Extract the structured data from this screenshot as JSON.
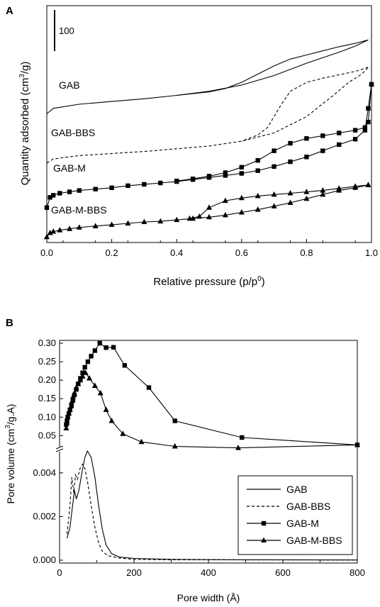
{
  "chart_data": [
    {
      "panel_label": "A",
      "type": "line",
      "xlabel_main": "Relative pressure (p/p",
      "xlabel_sup": "0",
      "xlabel_end": ")",
      "ylabel_main": "Quantity adsorbed (cm",
      "ylabel_sup": "3",
      "ylabel_end": "/g)",
      "scale_bar_label": "100",
      "xlim": [
        0,
        1
      ],
      "xticks": [
        "0.0",
        "0.2",
        "0.4",
        "0.6",
        "0.8",
        "1.0"
      ],
      "curve_labels": [
        "GAB",
        "GAB-BBS",
        "GAB-M",
        "GAB-M-BBS"
      ],
      "series": [
        {
          "name": "GAB",
          "style": "solid",
          "marker": "none",
          "ads": [
            [
              0.0,
              182
            ],
            [
              0.02,
              190
            ],
            [
              0.1,
              196
            ],
            [
              0.2,
              200
            ],
            [
              0.3,
              204
            ],
            [
              0.4,
              209
            ],
            [
              0.5,
              215
            ],
            [
              0.6,
              224
            ],
            [
              0.7,
              238
            ],
            [
              0.8,
              256
            ],
            [
              0.9,
              272
            ],
            [
              0.95,
              281
            ],
            [
              0.99,
              290
            ]
          ],
          "des": [
            [
              0.99,
              290
            ],
            [
              0.95,
              285
            ],
            [
              0.9,
              280
            ],
            [
              0.85,
              274
            ],
            [
              0.8,
              268
            ],
            [
              0.75,
              262
            ],
            [
              0.7,
              252
            ],
            [
              0.65,
              240
            ],
            [
              0.6,
              228
            ],
            [
              0.55,
              219
            ],
            [
              0.5,
              214
            ],
            [
              0.4,
              209
            ]
          ]
        },
        {
          "name": "GAB-BBS",
          "style": "dashed",
          "marker": "none",
          "ads": [
            [
              0.0,
              110
            ],
            [
              0.02,
              116
            ],
            [
              0.1,
              121
            ],
            [
              0.2,
              124
            ],
            [
              0.3,
              127
            ],
            [
              0.4,
              131
            ],
            [
              0.5,
              135
            ],
            [
              0.6,
              142
            ],
            [
              0.7,
              154
            ],
            [
              0.8,
              178
            ],
            [
              0.88,
              208
            ],
            [
              0.93,
              228
            ],
            [
              0.97,
              240
            ],
            [
              0.99,
              250
            ]
          ],
          "des": [
            [
              0.99,
              250
            ],
            [
              0.95,
              244
            ],
            [
              0.9,
              239
            ],
            [
              0.85,
              234
            ],
            [
              0.8,
              228
            ],
            [
              0.75,
              215
            ],
            [
              0.72,
              194
            ],
            [
              0.7,
              178
            ],
            [
              0.68,
              162
            ],
            [
              0.65,
              151
            ],
            [
              0.6,
              142
            ]
          ]
        },
        {
          "name": "GAB-M",
          "style": "solid",
          "marker": "square",
          "ads": [
            [
              0.0,
              45
            ],
            [
              0.01,
              60
            ],
            [
              0.02,
              63
            ],
            [
              0.04,
              66
            ],
            [
              0.07,
              68
            ],
            [
              0.1,
              70
            ],
            [
              0.15,
              72
            ],
            [
              0.2,
              74
            ],
            [
              0.25,
              77
            ],
            [
              0.3,
              79
            ],
            [
              0.35,
              81
            ],
            [
              0.4,
              83
            ],
            [
              0.45,
              86
            ],
            [
              0.5,
              89
            ],
            [
              0.55,
              92
            ],
            [
              0.6,
              95
            ],
            [
              0.65,
              99
            ],
            [
              0.7,
              105
            ],
            [
              0.75,
              112
            ],
            [
              0.8,
              119
            ],
            [
              0.85,
              128
            ],
            [
              0.9,
              137
            ],
            [
              0.95,
              145
            ],
            [
              0.98,
              158
            ],
            [
              0.99,
              190
            ],
            [
              1.0,
              225
            ]
          ],
          "des": [
            [
              1.0,
              225
            ],
            [
              0.99,
              170
            ],
            [
              0.98,
              162
            ],
            [
              0.95,
              158
            ],
            [
              0.9,
              154
            ],
            [
              0.85,
              150
            ],
            [
              0.8,
              146
            ],
            [
              0.75,
              139
            ],
            [
              0.7,
              128
            ],
            [
              0.65,
              114
            ],
            [
              0.6,
              104
            ],
            [
              0.55,
              96
            ],
            [
              0.5,
              91
            ],
            [
              0.45,
              87
            ],
            [
              0.4,
              84
            ]
          ]
        },
        {
          "name": "GAB-M-BBS",
          "style": "solid",
          "marker": "triangle",
          "ads": [
            [
              0.0,
              2
            ],
            [
              0.01,
              8
            ],
            [
              0.02,
              10
            ],
            [
              0.04,
              12
            ],
            [
              0.07,
              14
            ],
            [
              0.1,
              16
            ],
            [
              0.15,
              18
            ],
            [
              0.2,
              20
            ],
            [
              0.25,
              22
            ],
            [
              0.3,
              24
            ],
            [
              0.35,
              25
            ],
            [
              0.4,
              27
            ],
            [
              0.45,
              29
            ],
            [
              0.5,
              31
            ],
            [
              0.55,
              34
            ],
            [
              0.6,
              38
            ],
            [
              0.65,
              42
            ],
            [
              0.7,
              47
            ],
            [
              0.75,
              52
            ],
            [
              0.8,
              58
            ],
            [
              0.85,
              64
            ],
            [
              0.9,
              70
            ],
            [
              0.95,
              74
            ],
            [
              0.99,
              78
            ]
          ],
          "des": [
            [
              0.99,
              78
            ],
            [
              0.95,
              76
            ],
            [
              0.9,
              73
            ],
            [
              0.85,
              70
            ],
            [
              0.8,
              68
            ],
            [
              0.75,
              66
            ],
            [
              0.7,
              64
            ],
            [
              0.65,
              62
            ],
            [
              0.6,
              59
            ],
            [
              0.55,
              55
            ],
            [
              0.5,
              45
            ],
            [
              0.47,
              32
            ],
            [
              0.44,
              29
            ]
          ]
        }
      ]
    },
    {
      "panel_label": "B",
      "type": "line",
      "xlabel": "Pore width (Å)",
      "ylabel_main": "Pore volume (cm",
      "ylabel_sup": "3",
      "ylabel_end": "/g.A)",
      "xlim": [
        0,
        800
      ],
      "xticks": [
        "0",
        "200",
        "400",
        "600",
        "800"
      ],
      "ylim_upper": [
        0.02,
        0.3
      ],
      "yticks_upper": [
        "0.05",
        "0.10",
        "0.15",
        "0.20",
        "0.25",
        "0.30"
      ],
      "ylim_lower": [
        0,
        0.005
      ],
      "yticks_lower": [
        "0.000",
        "0.002",
        "0.004"
      ],
      "legend_position": "lower-right",
      "legend": [
        "GAB",
        "GAB-BBS",
        "GAB-M",
        "GAB-M-BBS"
      ],
      "series": [
        {
          "name": "GAB",
          "style": "solid",
          "marker": "none",
          "axis": "lower",
          "points": [
            [
              20,
              0.001
            ],
            [
              28,
              0.0015
            ],
            [
              35,
              0.0025
            ],
            [
              40,
              0.0032
            ],
            [
              45,
              0.0028
            ],
            [
              52,
              0.0032
            ],
            [
              60,
              0.004
            ],
            [
              68,
              0.0047
            ],
            [
              75,
              0.005
            ],
            [
              85,
              0.0047
            ],
            [
              95,
              0.0038
            ],
            [
              105,
              0.0025
            ],
            [
              115,
              0.0014
            ],
            [
              125,
              0.0007
            ],
            [
              140,
              0.0003
            ],
            [
              160,
              0.00015
            ],
            [
              200,
              8e-05
            ],
            [
              300,
              4e-05
            ],
            [
              500,
              2e-05
            ],
            [
              800,
              1e-05
            ]
          ]
        },
        {
          "name": "GAB-BBS",
          "style": "dashed",
          "marker": "none",
          "axis": "lower",
          "points": [
            [
              20,
              0.0012
            ],
            [
              28,
              0.0025
            ],
            [
              33,
              0.0038
            ],
            [
              38,
              0.0031
            ],
            [
              43,
              0.0039
            ],
            [
              48,
              0.0037
            ],
            [
              55,
              0.0042
            ],
            [
              62,
              0.0044
            ],
            [
              68,
              0.0042
            ],
            [
              75,
              0.0036
            ],
            [
              85,
              0.0025
            ],
            [
              95,
              0.0015
            ],
            [
              105,
              0.0008
            ],
            [
              115,
              0.0004
            ],
            [
              130,
              0.0002
            ],
            [
              160,
              0.0001
            ],
            [
              200,
              4e-05
            ],
            [
              300,
              2e-05
            ],
            [
              800,
              1e-05
            ]
          ]
        },
        {
          "name": "GAB-M",
          "style": "solid",
          "marker": "square",
          "axis": "upper",
          "points": [
            [
              18,
              0.08
            ],
            [
              20,
              0.09
            ],
            [
              22,
              0.1
            ],
            [
              25,
              0.11
            ],
            [
              28,
              0.12
            ],
            [
              32,
              0.13
            ],
            [
              36,
              0.145
            ],
            [
              40,
              0.16
            ],
            [
              45,
              0.175
            ],
            [
              50,
              0.19
            ],
            [
              56,
              0.205
            ],
            [
              62,
              0.22
            ],
            [
              68,
              0.235
            ],
            [
              76,
              0.25
            ],
            [
              85,
              0.265
            ],
            [
              95,
              0.28
            ],
            [
              108,
              0.3
            ],
            [
              125,
              0.288
            ],
            [
              145,
              0.289
            ],
            [
              175,
              0.24
            ],
            [
              240,
              0.18
            ],
            [
              310,
              0.09
            ],
            [
              490,
              0.045
            ],
            [
              800,
              0.025
            ]
          ]
        },
        {
          "name": "GAB-M-BBS",
          "style": "solid",
          "marker": "triangle",
          "axis": "upper",
          "points": [
            [
              18,
              0.07
            ],
            [
              20,
              0.085
            ],
            [
              22,
              0.1
            ],
            [
              25,
              0.11
            ],
            [
              28,
              0.12
            ],
            [
              32,
              0.14
            ],
            [
              36,
              0.155
            ],
            [
              40,
              0.165
            ],
            [
              45,
              0.18
            ],
            [
              50,
              0.19
            ],
            [
              56,
              0.2
            ],
            [
              62,
              0.21
            ],
            [
              70,
              0.22
            ],
            [
              80,
              0.205
            ],
            [
              95,
              0.185
            ],
            [
              110,
              0.165
            ],
            [
              125,
              0.12
            ],
            [
              140,
              0.09
            ],
            [
              170,
              0.055
            ],
            [
              220,
              0.033
            ],
            [
              310,
              0.021
            ],
            [
              480,
              0.017
            ],
            [
              800,
              0.025
            ]
          ]
        }
      ]
    }
  ]
}
